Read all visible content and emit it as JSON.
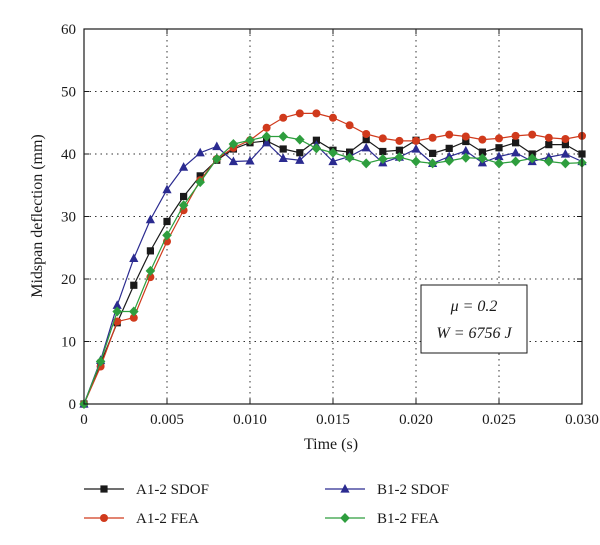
{
  "chart_data": {
    "type": "line",
    "title": "",
    "xlabel": "Time (s)",
    "ylabel": "Midspan deflection (mm)",
    "xlim": [
      0,
      0.03
    ],
    "ylim": [
      0,
      60
    ],
    "xticks": [
      0,
      0.005,
      0.01,
      0.015,
      0.02,
      0.025,
      0.03
    ],
    "xtick_labels": [
      "0",
      "0.005",
      "0.010",
      "0.015",
      "0.020",
      "0.025",
      "0.030"
    ],
    "yticks": [
      0,
      10,
      20,
      30,
      40,
      50,
      60
    ],
    "ytick_labels": [
      "0",
      "10",
      "20",
      "30",
      "40",
      "50",
      "60"
    ],
    "grid": "dotted",
    "annotation": {
      "line1": "μ = 0.2",
      "line2": "W = 6756 J",
      "placement": "middle-right"
    },
    "legend_placement": "below",
    "x": [
      0,
      0.001,
      0.002,
      0.003,
      0.004,
      0.005,
      0.006,
      0.007,
      0.008,
      0.009,
      0.01,
      0.011,
      0.012,
      0.013,
      0.014,
      0.015,
      0.016,
      0.017,
      0.018,
      0.019,
      0.02,
      0.021,
      0.022,
      0.023,
      0.024,
      0.025,
      0.026,
      0.027,
      0.028,
      0.029,
      0.03
    ],
    "series": [
      {
        "name": "A1-2 SDOF",
        "color": "#1a1a1a",
        "marker": "square",
        "values": [
          0,
          6.5,
          13.0,
          19.0,
          24.5,
          29.2,
          33.2,
          36.5,
          39.0,
          40.8,
          41.8,
          42.1,
          40.8,
          40.2,
          42.2,
          40.6,
          40.3,
          42.3,
          40.4,
          40.6,
          42.2,
          40.1,
          40.9,
          42.0,
          40.3,
          41.0,
          41.8,
          40.0,
          41.5,
          41.5,
          40.0
        ]
      },
      {
        "name": "A1-2 FEA",
        "color": "#d03a1c",
        "marker": "circle",
        "values": [
          0,
          6.0,
          13.2,
          13.8,
          20.3,
          26.0,
          31.0,
          35.8,
          39.2,
          41.0,
          42.2,
          44.2,
          45.8,
          46.5,
          46.5,
          45.8,
          44.6,
          43.2,
          42.5,
          42.1,
          42.1,
          42.6,
          43.1,
          42.8,
          42.3,
          42.5,
          42.9,
          43.1,
          42.6,
          42.4,
          42.9
        ]
      },
      {
        "name": "B1-2 SDOF",
        "color": "#2b2b90",
        "marker": "triangle",
        "values": [
          0,
          7.0,
          15.8,
          23.3,
          29.5,
          34.3,
          37.9,
          40.2,
          41.2,
          38.8,
          38.9,
          41.8,
          39.3,
          39.0,
          41.4,
          38.8,
          39.6,
          41.0,
          38.6,
          39.5,
          40.8,
          38.5,
          39.6,
          40.5,
          38.6,
          39.6,
          40.2,
          38.8,
          39.5,
          40.0,
          38.8
        ]
      },
      {
        "name": "B1-2 FEA",
        "color": "#2e9e3e",
        "marker": "diamond",
        "values": [
          0,
          6.8,
          14.8,
          14.8,
          21.3,
          27.0,
          31.8,
          35.5,
          39.2,
          41.6,
          42.2,
          42.8,
          42.8,
          42.3,
          40.9,
          40.2,
          39.4,
          38.5,
          39.2,
          39.5,
          38.8,
          38.5,
          38.9,
          39.4,
          39.3,
          38.5,
          38.8,
          39.3,
          38.8,
          38.5,
          38.6
        ]
      }
    ]
  }
}
